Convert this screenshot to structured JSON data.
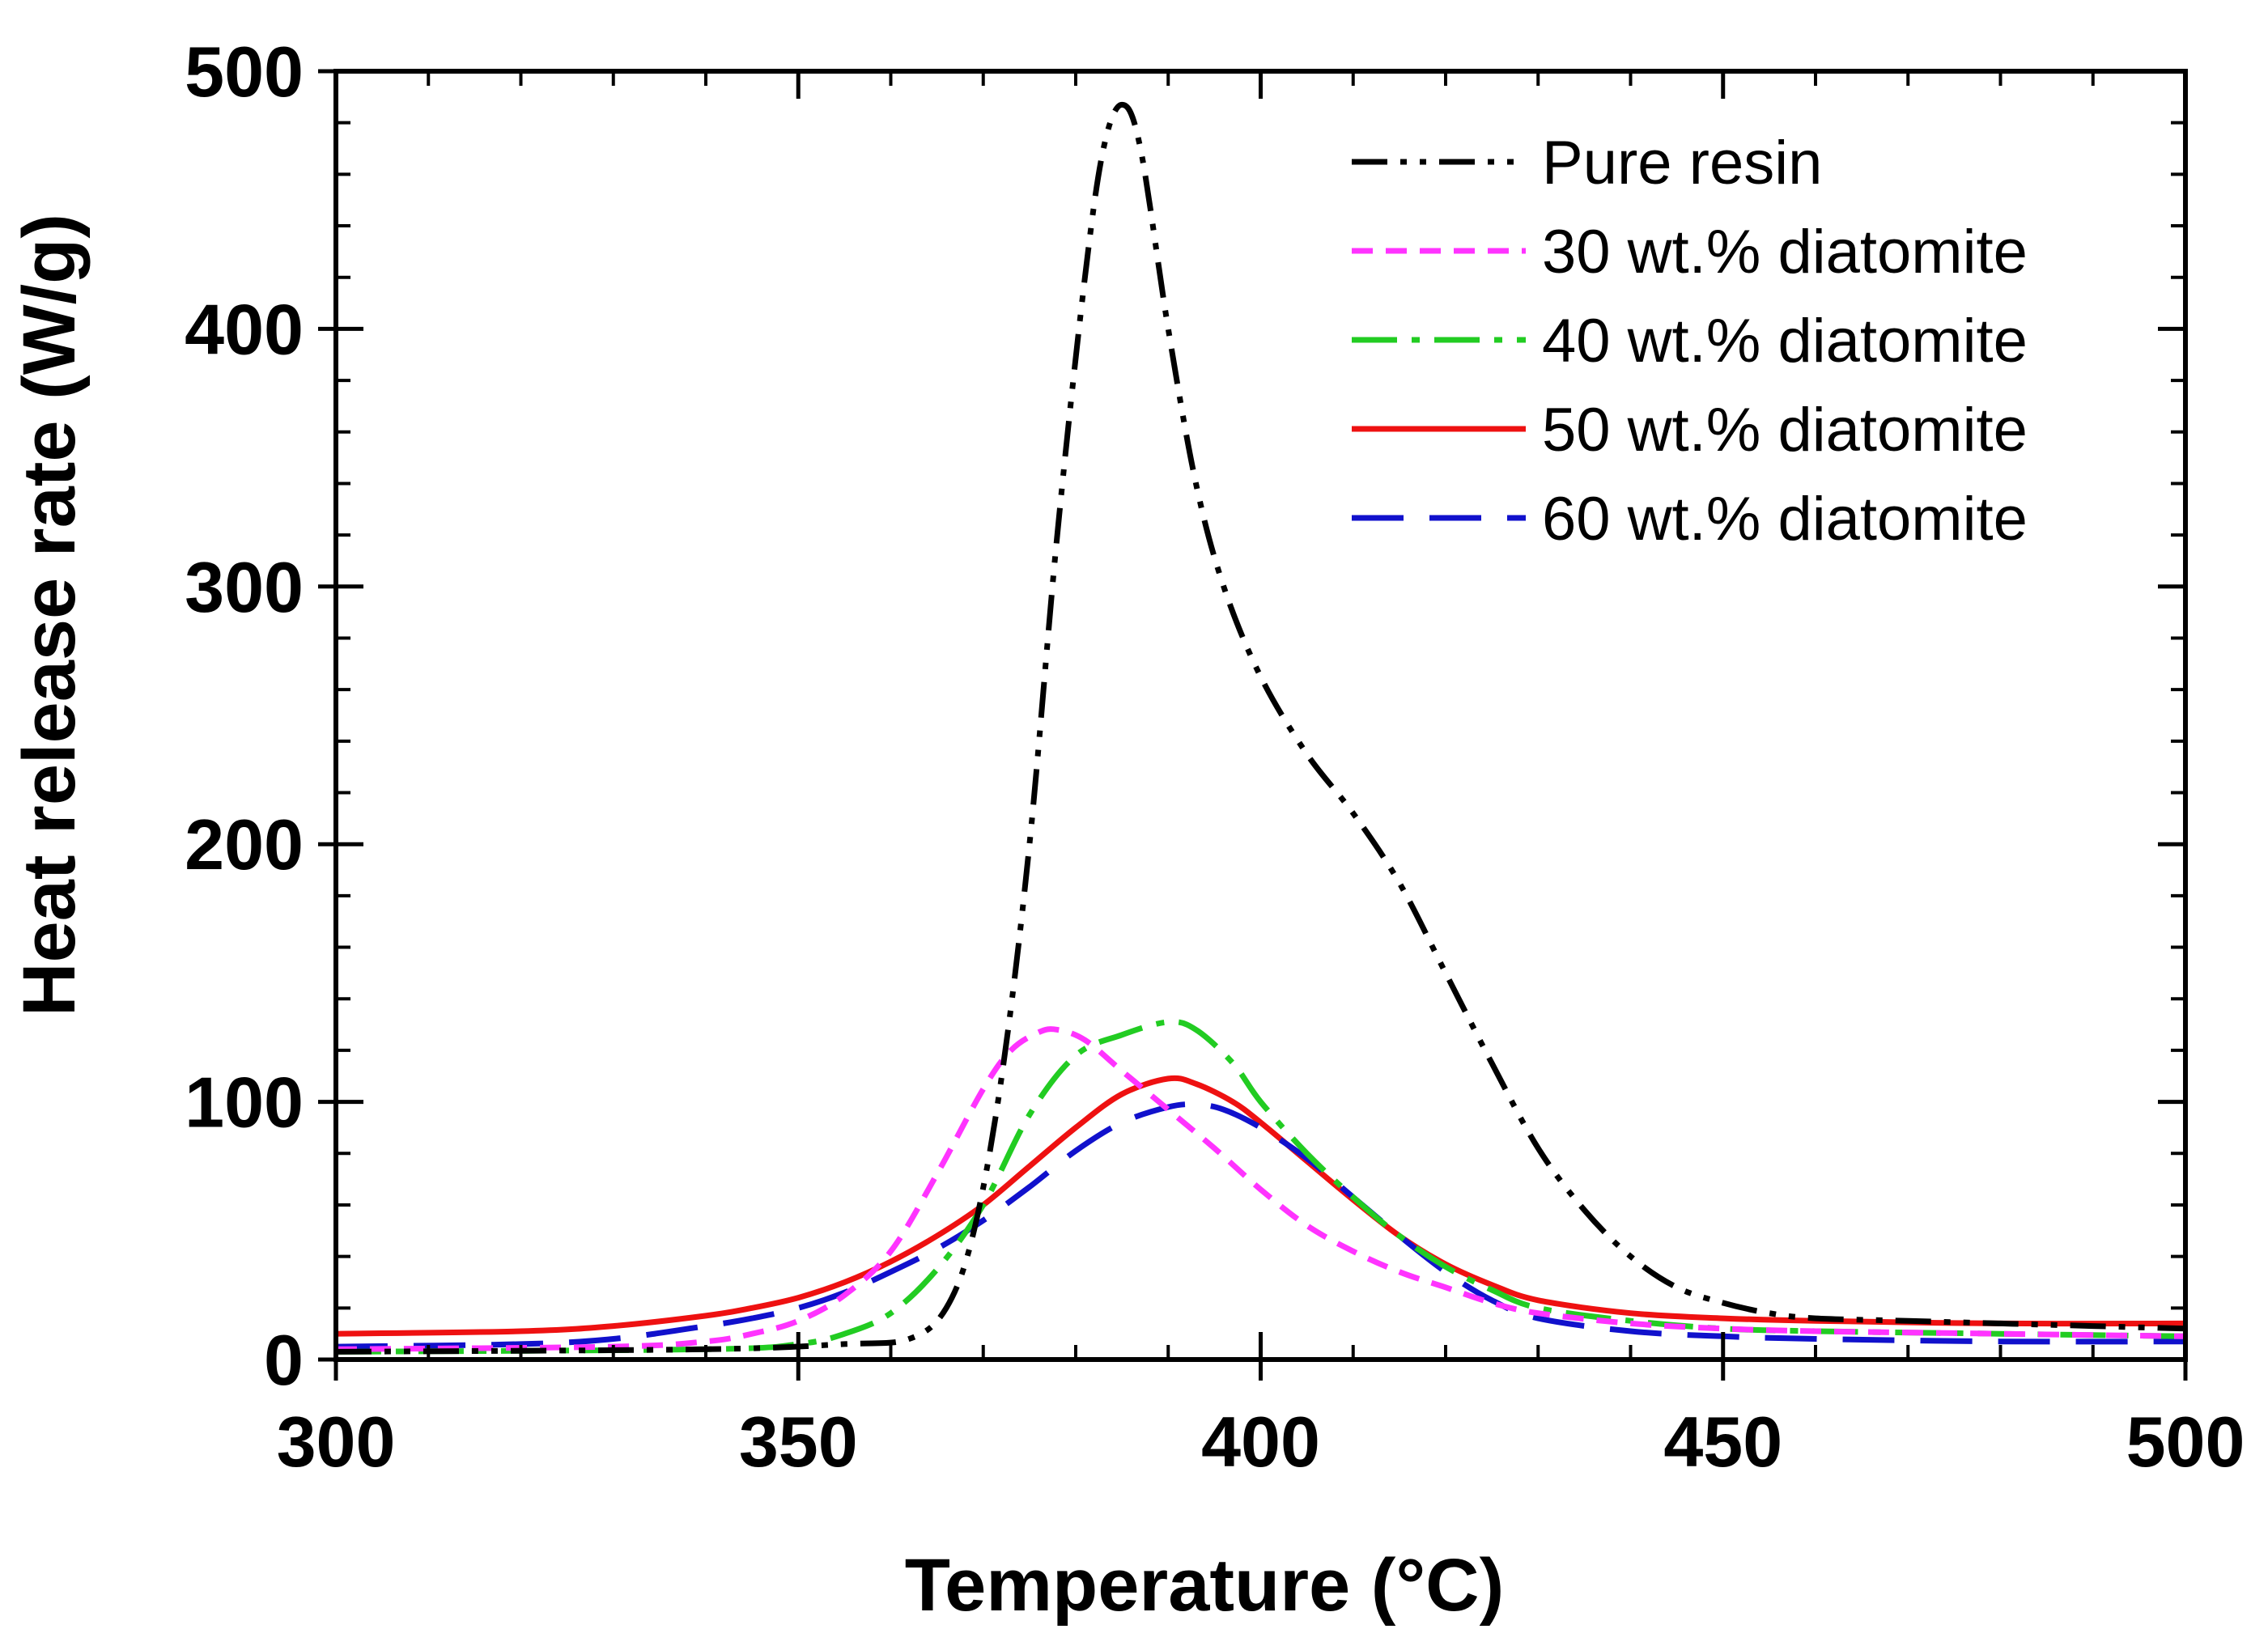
{
  "chart_data": {
    "type": "line",
    "title": "",
    "xlabel": "Temperature (°C)",
    "ylabel": "Heat release rate (W/g)",
    "xlim": [
      300,
      500
    ],
    "ylim": [
      0,
      500
    ],
    "xticks": [
      300,
      350,
      400,
      450,
      500
    ],
    "xtick_labels": [
      "300",
      "350",
      "400",
      "450",
      "500"
    ],
    "yticks": [
      0,
      100,
      200,
      300,
      400,
      500
    ],
    "ytick_labels": [
      "0",
      "100",
      "200",
      "300",
      "400",
      "500"
    ],
    "grid": false,
    "legend_position": "top-right",
    "series": [
      {
        "name": "Pure resin",
        "color": "#000000",
        "style": "dash-dot-dot",
        "points": [
          [
            300,
            3
          ],
          [
            340,
            4
          ],
          [
            355,
            6
          ],
          [
            362,
            8
          ],
          [
            366,
            20
          ],
          [
            369,
            50
          ],
          [
            372,
            110
          ],
          [
            375,
            200
          ],
          [
            378,
            320
          ],
          [
            381,
            420
          ],
          [
            383,
            470
          ],
          [
            385,
            487
          ],
          [
            387,
            470
          ],
          [
            390,
            400
          ],
          [
            393,
            340
          ],
          [
            396,
            300
          ],
          [
            400,
            265
          ],
          [
            405,
            235
          ],
          [
            410,
            212
          ],
          [
            415,
            185
          ],
          [
            420,
            150
          ],
          [
            425,
            115
          ],
          [
            430,
            82
          ],
          [
            435,
            58
          ],
          [
            440,
            40
          ],
          [
            445,
            28
          ],
          [
            450,
            22
          ],
          [
            455,
            18
          ],
          [
            460,
            16
          ],
          [
            470,
            15
          ],
          [
            480,
            14
          ],
          [
            490,
            13
          ],
          [
            500,
            12
          ]
        ]
      },
      {
        "name": "30 wt.% diatomite",
        "color": "#ff33ff",
        "style": "short-dash",
        "points": [
          [
            300,
            4
          ],
          [
            330,
            5
          ],
          [
            340,
            7
          ],
          [
            345,
            10
          ],
          [
            350,
            15
          ],
          [
            355,
            25
          ],
          [
            360,
            42
          ],
          [
            365,
            72
          ],
          [
            370,
            105
          ],
          [
            373,
            120
          ],
          [
            376,
            127
          ],
          [
            378,
            128
          ],
          [
            381,
            124
          ],
          [
            385,
            112
          ],
          [
            390,
            97
          ],
          [
            395,
            82
          ],
          [
            400,
            66
          ],
          [
            405,
            52
          ],
          [
            410,
            42
          ],
          [
            415,
            34
          ],
          [
            420,
            28
          ],
          [
            425,
            22
          ],
          [
            430,
            18
          ],
          [
            440,
            14
          ],
          [
            450,
            12
          ],
          [
            460,
            11
          ],
          [
            480,
            10
          ],
          [
            500,
            9
          ]
        ]
      },
      {
        "name": "40 wt.% diatomite",
        "color": "#22cc22",
        "style": "dash-dot",
        "points": [
          [
            300,
            3
          ],
          [
            340,
            4
          ],
          [
            350,
            6
          ],
          [
            355,
            10
          ],
          [
            360,
            18
          ],
          [
            365,
            35
          ],
          [
            370,
            60
          ],
          [
            375,
            95
          ],
          [
            380,
            118
          ],
          [
            385,
            126
          ],
          [
            390,
            131
          ],
          [
            393,
            128
          ],
          [
            397,
            115
          ],
          [
            400,
            100
          ],
          [
            405,
            80
          ],
          [
            410,
            63
          ],
          [
            415,
            48
          ],
          [
            420,
            36
          ],
          [
            425,
            27
          ],
          [
            430,
            20
          ],
          [
            440,
            15
          ],
          [
            450,
            12
          ],
          [
            460,
            11
          ],
          [
            480,
            10
          ],
          [
            500,
            9
          ]
        ]
      },
      {
        "name": "50 wt.% diatomite",
        "color": "#ee1111",
        "style": "solid",
        "points": [
          [
            300,
            10
          ],
          [
            320,
            11
          ],
          [
            330,
            13
          ],
          [
            340,
            17
          ],
          [
            345,
            20
          ],
          [
            350,
            24
          ],
          [
            355,
            30
          ],
          [
            360,
            38
          ],
          [
            365,
            48
          ],
          [
            370,
            60
          ],
          [
            375,
            75
          ],
          [
            380,
            90
          ],
          [
            385,
            103
          ],
          [
            390,
            109
          ],
          [
            393,
            107
          ],
          [
            397,
            100
          ],
          [
            400,
            92
          ],
          [
            405,
            77
          ],
          [
            410,
            62
          ],
          [
            415,
            48
          ],
          [
            420,
            37
          ],
          [
            425,
            29
          ],
          [
            430,
            23
          ],
          [
            440,
            18
          ],
          [
            450,
            16
          ],
          [
            460,
            15
          ],
          [
            480,
            14
          ],
          [
            500,
            14
          ]
        ]
      },
      {
        "name": "60 wt.% diatomite",
        "color": "#1111cc",
        "style": "long-dash",
        "points": [
          [
            300,
            5
          ],
          [
            320,
            6
          ],
          [
            330,
            8
          ],
          [
            340,
            13
          ],
          [
            345,
            16
          ],
          [
            350,
            20
          ],
          [
            355,
            26
          ],
          [
            360,
            34
          ],
          [
            365,
            43
          ],
          [
            370,
            54
          ],
          [
            375,
            67
          ],
          [
            380,
            81
          ],
          [
            385,
            92
          ],
          [
            390,
            98
          ],
          [
            393,
            99
          ],
          [
            396,
            97
          ],
          [
            400,
            90
          ],
          [
            405,
            78
          ],
          [
            410,
            63
          ],
          [
            415,
            48
          ],
          [
            420,
            34
          ],
          [
            425,
            23
          ],
          [
            430,
            16
          ],
          [
            440,
            11
          ],
          [
            450,
            9
          ],
          [
            460,
            8
          ],
          [
            480,
            7
          ],
          [
            500,
            7
          ]
        ]
      }
    ]
  }
}
